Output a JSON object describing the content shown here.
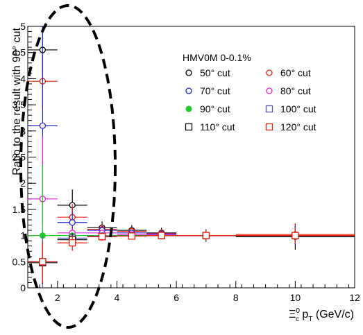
{
  "chart_data": {
    "type": "scatter",
    "xlabel": "Ξ",
    "xlabel_sub": "c",
    "xlabel_sup": "0",
    "xlabel_mid": " p",
    "xlabel_sub2": "T",
    "xlabel_tail": " (GeV/c)",
    "ylabel": "Ratio to the result with 90° cut",
    "xlim": [
      1,
      12
    ],
    "ylim": [
      0,
      5
    ],
    "x_ticks": [
      "2",
      "4",
      "6",
      "8",
      "10",
      "12"
    ],
    "y_ticks": [
      "0",
      "0.5",
      "1",
      "1.5",
      "2",
      "2.5",
      "3",
      "3.5",
      "4",
      "4.5",
      "5"
    ],
    "legend_title": "HMV0M 0-0.1%",
    "legend_placement": "top-right",
    "bins": [
      {
        "x": 1.5,
        "xerr": 0.5
      },
      {
        "x": 2.5,
        "xerr": 0.5
      },
      {
        "x": 3.5,
        "xerr": 0.5
      },
      {
        "x": 4.5,
        "xerr": 0.5
      },
      {
        "x": 5.5,
        "xerr": 0.5
      },
      {
        "x": 7.0,
        "xerr": 1.0
      },
      {
        "x": 10.0,
        "xerr": 2.0
      }
    ],
    "series": [
      {
        "name": "50° cut",
        "color": "#000000",
        "marker": "circle-open",
        "values": [
          4.55,
          1.58,
          1.15,
          1.1,
          1.05,
          1.0,
          0.98
        ],
        "yerr": [
          0.5,
          0.3,
          0.12,
          0.1,
          0.1,
          0.12,
          0.25
        ]
      },
      {
        "name": "60° cut",
        "color": "#e8200c",
        "marker": "circle-open",
        "values": [
          3.95,
          1.35,
          1.12,
          1.08,
          1.04,
          1.0,
          1.02
        ],
        "yerr": [
          0.5,
          0.25,
          0.1,
          0.08,
          0.08,
          0.1,
          0.2
        ]
      },
      {
        "name": "70° cut",
        "color": "#2222d6",
        "marker": "circle-open",
        "values": [
          3.1,
          1.25,
          1.1,
          1.05,
          1.03,
          1.0,
          1.0
        ],
        "yerr": [
          1.9,
          0.2,
          0.08,
          0.06,
          0.06,
          0.08,
          0.18
        ]
      },
      {
        "name": "80° cut",
        "color": "#e020e0",
        "marker": "circle-open",
        "values": [
          1.7,
          1.05,
          1.05,
          1.02,
          1.01,
          1.0,
          1.0
        ],
        "yerr": [
          1.2,
          0.1,
          0.05,
          0.04,
          0.04,
          0.05,
          0.1
        ]
      },
      {
        "name": "90° cut",
        "color": "#22cc22",
        "marker": "circle-filled",
        "values": [
          1.0,
          1.0,
          1.0,
          1.0,
          1.0,
          1.0,
          1.0
        ],
        "yerr": [
          1.35,
          0.0,
          0.0,
          0.0,
          0.0,
          0.0,
          0.0
        ]
      },
      {
        "name": "100° cut",
        "color": "#5555bb",
        "marker": "square-open",
        "values": [
          0.5,
          0.95,
          0.99,
          0.99,
          1.0,
          1.0,
          1.0
        ],
        "yerr": [
          0.5,
          0.1,
          0.04,
          0.04,
          0.04,
          0.05,
          0.1
        ]
      },
      {
        "name": "110° cut",
        "color": "#000000",
        "marker": "square-open",
        "values": [
          0.48,
          0.92,
          0.98,
          0.99,
          1.0,
          1.0,
          1.0
        ],
        "yerr": [
          0.4,
          0.12,
          0.05,
          0.05,
          0.05,
          0.06,
          0.12
        ]
      },
      {
        "name": "120° cut",
        "color": "#e8200c",
        "marker": "square-open",
        "values": [
          0.5,
          0.86,
          0.98,
          0.99,
          1.0,
          1.0,
          1.0
        ],
        "yerr": [
          0.4,
          0.15,
          0.08,
          0.06,
          0.06,
          0.08,
          0.15
        ]
      }
    ],
    "annotation": "dashed ellipse highlighting the lowest two bins"
  }
}
